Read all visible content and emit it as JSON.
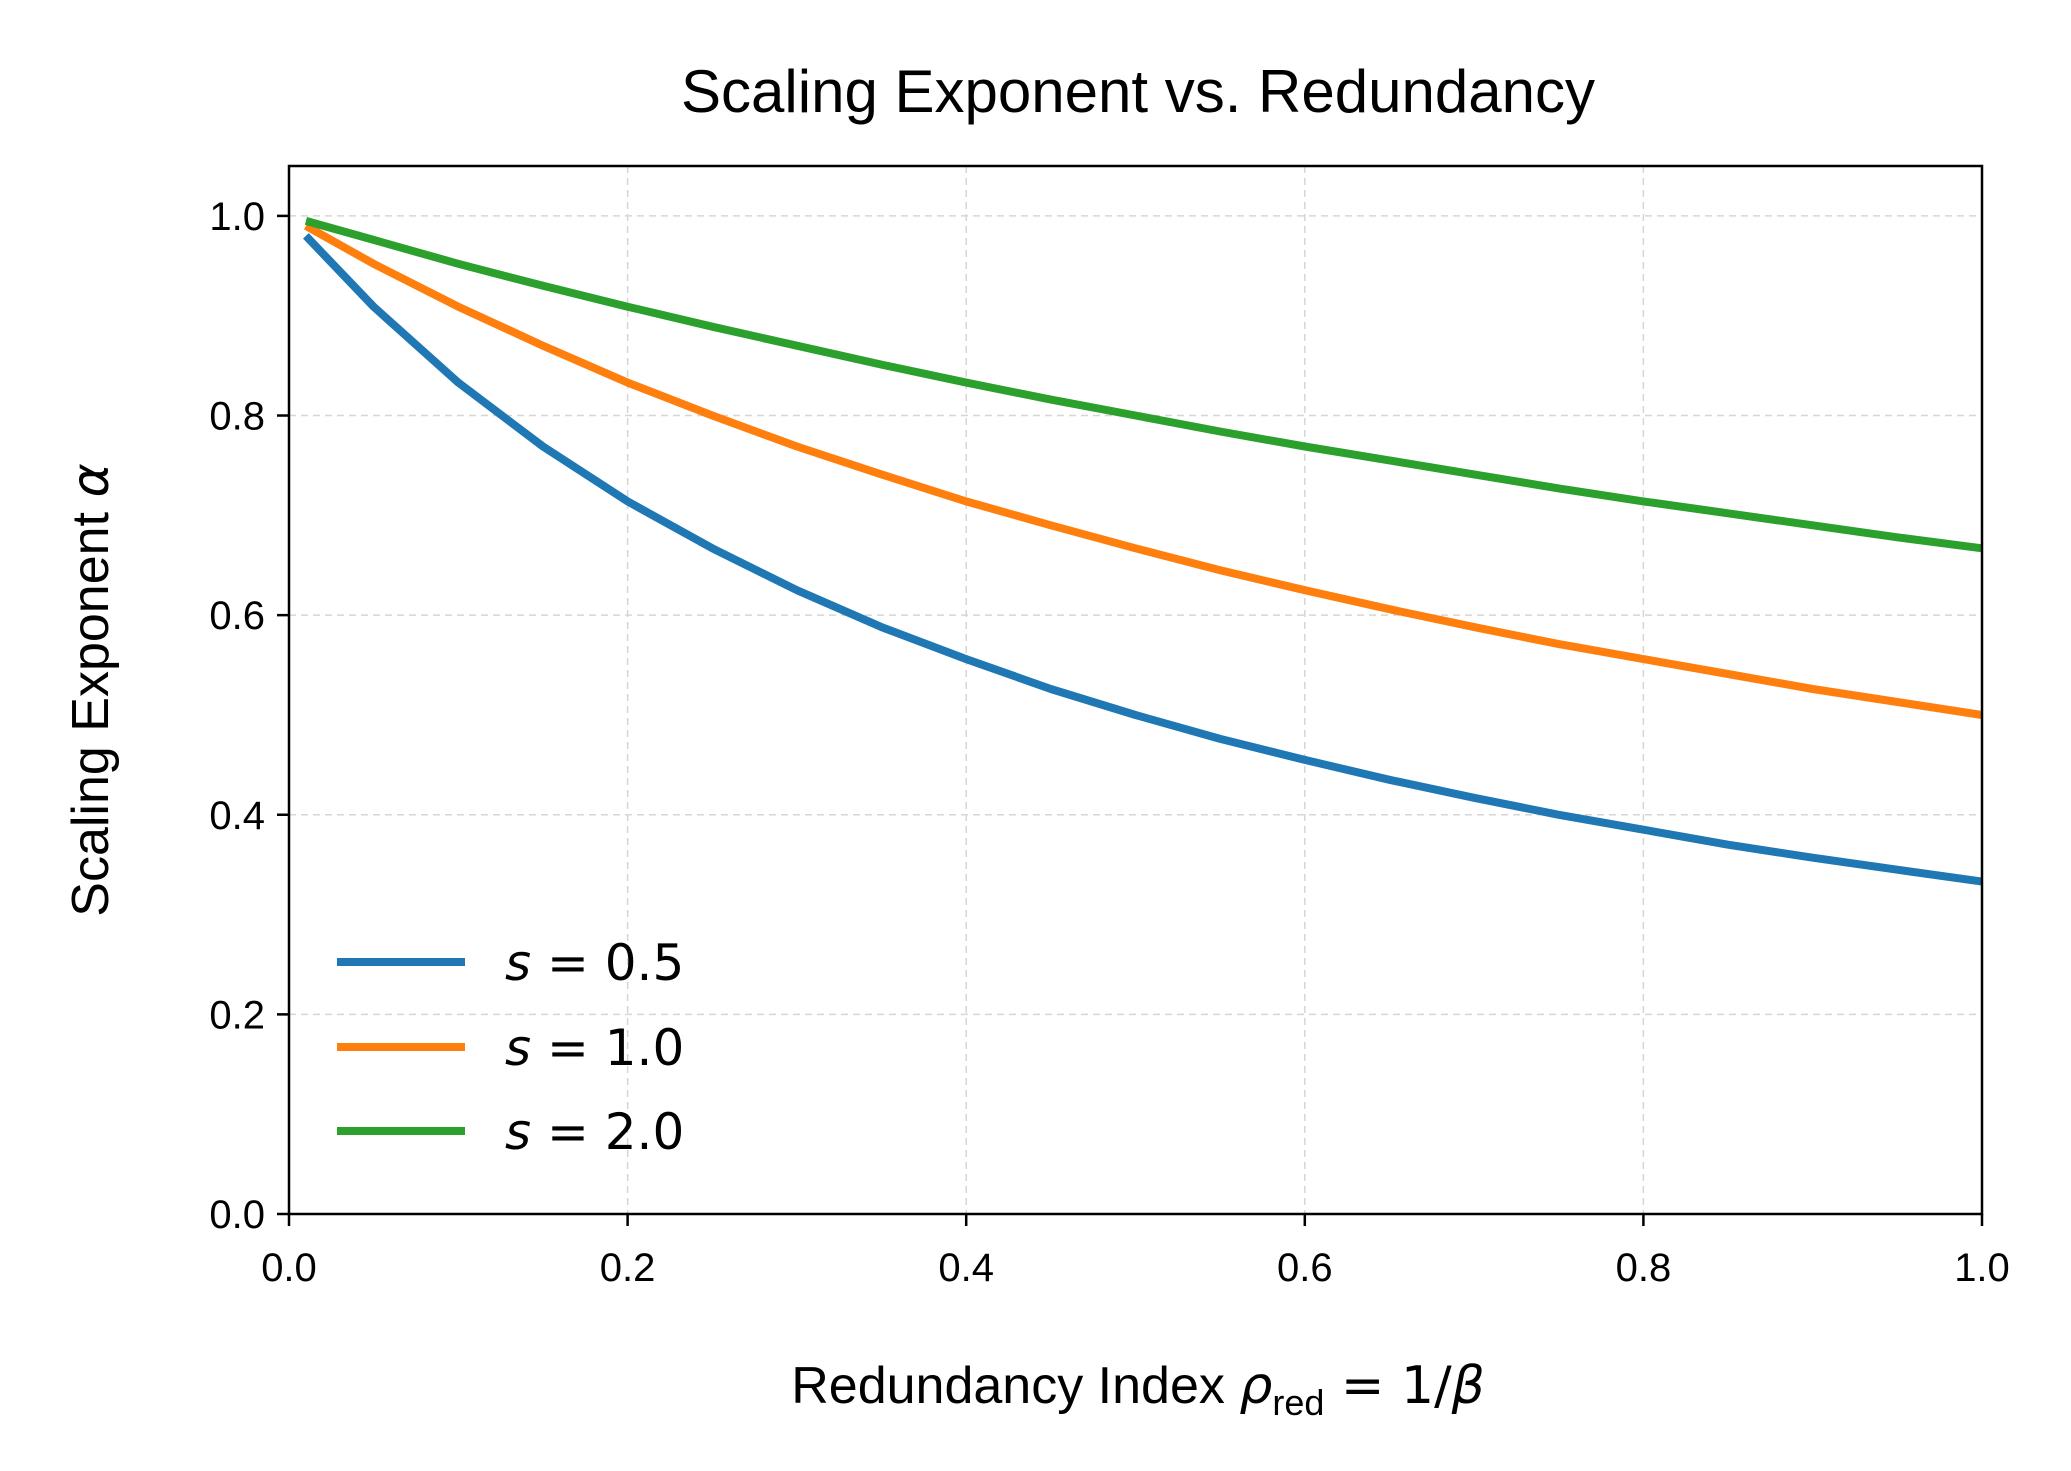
{
  "chart_data": {
    "type": "line",
    "title": "Scaling Exponent vs. Redundancy",
    "xlabel": {
      "prefix": "Redundancy Index ",
      "symbol": "ρ",
      "subscript": "red",
      "suffix": " = 1/",
      "suffix_symbol": "β"
    },
    "ylabel": {
      "prefix": "Scaling Exponent ",
      "symbol": "α"
    },
    "xlim": [
      0.0,
      1.0
    ],
    "ylim": [
      0.0,
      1.05
    ],
    "xticks": [
      0.0,
      0.2,
      0.4,
      0.6,
      0.8,
      1.0
    ],
    "xtick_labels": [
      "0.0",
      "0.2",
      "0.4",
      "0.6",
      "0.8",
      "1.0"
    ],
    "yticks": [
      0.0,
      0.2,
      0.4,
      0.6,
      0.8,
      1.0
    ],
    "ytick_labels": [
      "0.0",
      "0.2",
      "0.4",
      "0.6",
      "0.8",
      "1.0"
    ],
    "grid": true,
    "legend_position": "lower-left",
    "x": [
      0.01,
      0.05,
      0.1,
      0.15,
      0.2,
      0.25,
      0.3,
      0.35,
      0.4,
      0.45,
      0.5,
      0.55,
      0.6,
      0.65,
      0.7,
      0.75,
      0.8,
      0.85,
      0.9,
      0.95,
      1.0
    ],
    "series": [
      {
        "name": "s = 0.5",
        "s_label": "s",
        "eq_label": " = 0.5",
        "color": "#1f77b4",
        "values": [
          0.98,
          0.909,
          0.833,
          0.769,
          0.714,
          0.667,
          0.625,
          0.588,
          0.556,
          0.526,
          0.5,
          0.476,
          0.455,
          0.435,
          0.417,
          0.4,
          0.385,
          0.37,
          0.357,
          0.345,
          0.333
        ]
      },
      {
        "name": "s = 1.0",
        "s_label": "s",
        "eq_label": " = 1.0",
        "color": "#ff7f0e",
        "values": [
          0.99,
          0.952,
          0.909,
          0.87,
          0.833,
          0.8,
          0.769,
          0.741,
          0.714,
          0.69,
          0.667,
          0.645,
          0.625,
          0.606,
          0.588,
          0.571,
          0.556,
          0.541,
          0.526,
          0.513,
          0.5
        ]
      },
      {
        "name": "s = 2.0",
        "s_label": "s",
        "eq_label": " = 2.0",
        "color": "#2ca02c",
        "values": [
          0.995,
          0.976,
          0.952,
          0.93,
          0.909,
          0.889,
          0.87,
          0.851,
          0.833,
          0.816,
          0.8,
          0.784,
          0.769,
          0.755,
          0.741,
          0.727,
          0.714,
          0.702,
          0.69,
          0.678,
          0.667
        ]
      }
    ]
  }
}
